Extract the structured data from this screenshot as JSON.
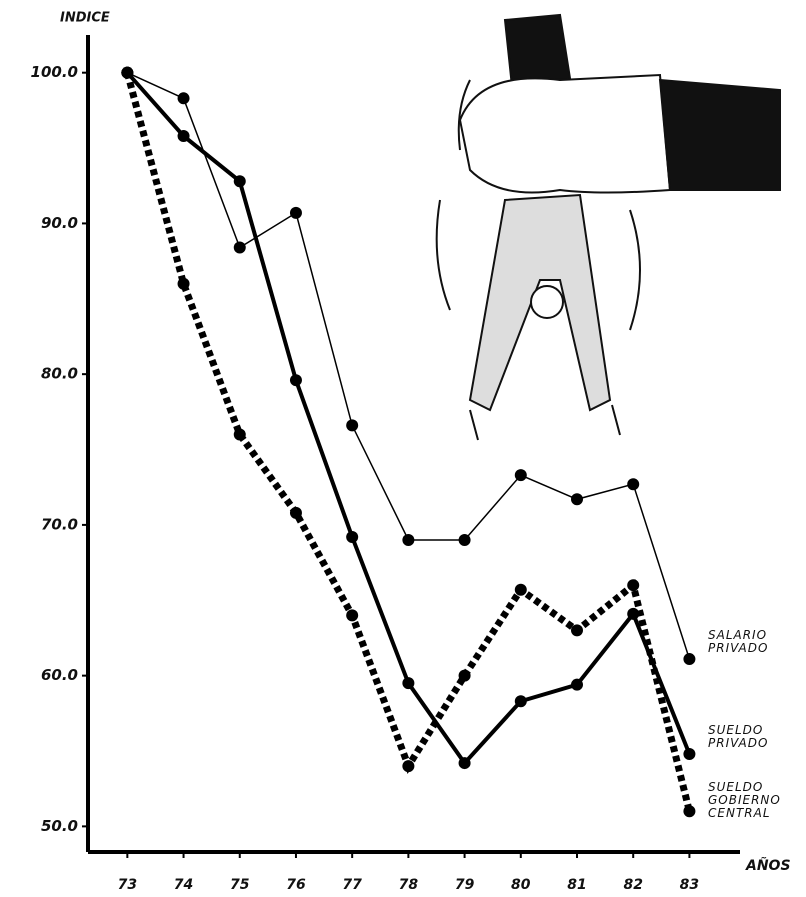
{
  "chart_data": {
    "type": "line",
    "y_label": "INDICE",
    "x_label": "AÑOS",
    "x": [
      73,
      74,
      75,
      76,
      77,
      78,
      79,
      80,
      81,
      82,
      83
    ],
    "xlim": [
      72.3,
      83.9
    ],
    "xticks": [
      73,
      74,
      75,
      76,
      77,
      78,
      79,
      80,
      81,
      82,
      83
    ],
    "ylim": [
      48.3,
      102.5
    ],
    "yticks": [
      {
        "value": 50,
        "label": "50.0"
      },
      {
        "value": 60,
        "label": "60.0"
      },
      {
        "value": 70,
        "label": "70.0"
      },
      {
        "value": 80,
        "label": "80.0"
      },
      {
        "value": 90,
        "label": "90.0"
      },
      {
        "value": 100,
        "label": "100.0"
      }
    ],
    "grid": false,
    "series": [
      {
        "name": "SALARIO PRIVADO",
        "color": "#000000",
        "line_style": "thin",
        "values": [
          100,
          98.3,
          88.4,
          90.7,
          76.6,
          69.0,
          69.0,
          73.3,
          71.7,
          72.7,
          61.1
        ]
      },
      {
        "name": "SUELDO PRIVADO",
        "color": "#000000",
        "line_style": "thick",
        "values": [
          100,
          95.8,
          92.8,
          79.6,
          69.2,
          59.5,
          54.2,
          58.3,
          59.4,
          64.1,
          54.8
        ]
      },
      {
        "name": "SUELDO GOBIERNO CENTRAL",
        "color": "#000000",
        "line_style": "dotted",
        "values": [
          100,
          86.0,
          76.0,
          70.8,
          64.0,
          54.0,
          60.0,
          65.7,
          63.0,
          66.0,
          51.0
        ]
      }
    ]
  }
}
